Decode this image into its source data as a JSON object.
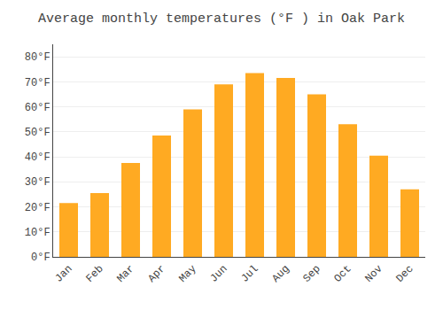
{
  "chart_data": {
    "type": "bar",
    "title": "Average monthly temperatures (°F ) in Oak Park",
    "categories": [
      "Jan",
      "Feb",
      "Mar",
      "Apr",
      "May",
      "Jun",
      "Jul",
      "Aug",
      "Sep",
      "Oct",
      "Nov",
      "Dec"
    ],
    "values": [
      21.5,
      25.5,
      37.5,
      48.5,
      59.0,
      69.0,
      73.5,
      71.5,
      65.0,
      53.0,
      40.5,
      27.0
    ],
    "color": "#FFAA22",
    "ylim": [
      0,
      85
    ],
    "yticks": [
      {
        "value": 0,
        "label": "0°F"
      },
      {
        "value": 10,
        "label": "10°F"
      },
      {
        "value": 20,
        "label": "20°F"
      },
      {
        "value": 30,
        "label": "30°F"
      },
      {
        "value": 40,
        "label": "40°F"
      },
      {
        "value": 50,
        "label": "50°F"
      },
      {
        "value": 60,
        "label": "60°F"
      },
      {
        "value": 70,
        "label": "70°F"
      },
      {
        "value": 80,
        "label": "80°F"
      }
    ],
    "grid": true
  }
}
